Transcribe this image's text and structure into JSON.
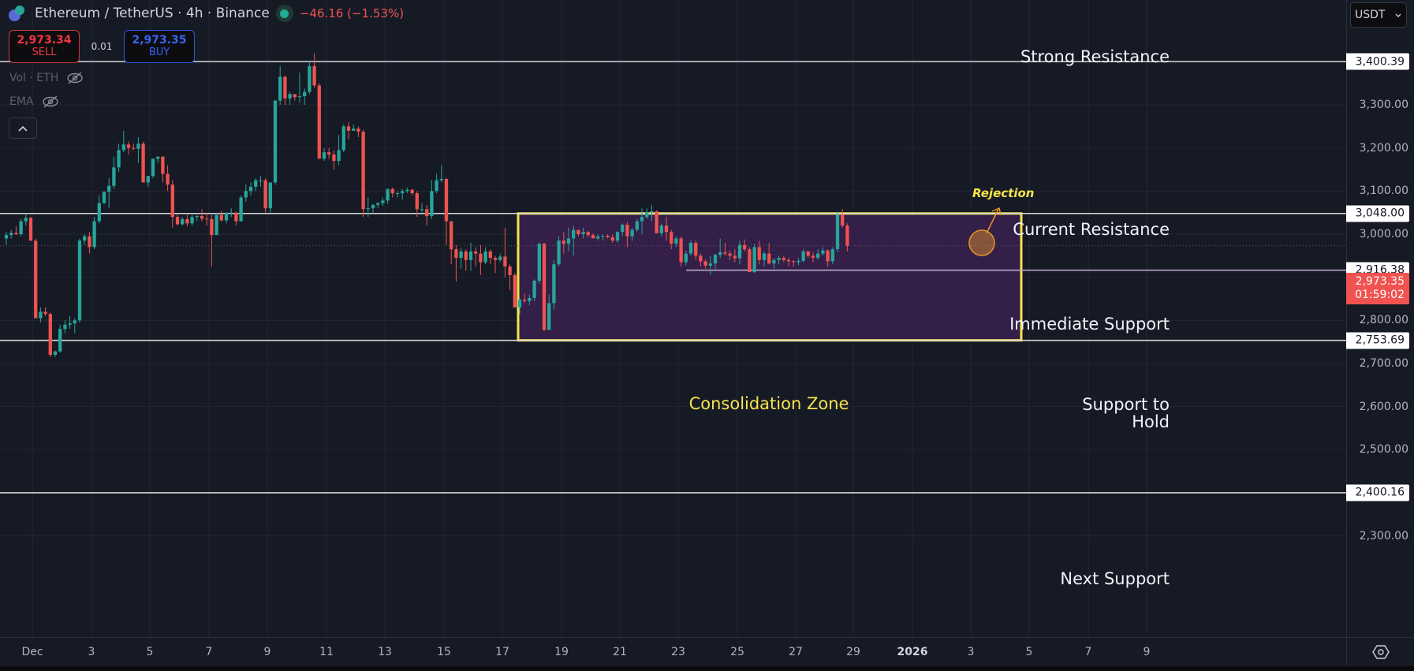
{
  "header": {
    "symbol_title": "Ethereum / TetherUS · 4h · Binance",
    "change": "−46.16 (−1.53%)",
    "sell_price": "2,973.34",
    "sell_label": "SELL",
    "spread": "0.01",
    "buy_price": "2,973.35",
    "buy_label": "BUY"
  },
  "indicators": [
    {
      "label": "Vol · ETH"
    },
    {
      "label": "EMA"
    }
  ],
  "currency_select": {
    "value": "USDT"
  },
  "colors": {
    "background": "#161a25",
    "up": "#26a69a",
    "down": "#ef5350",
    "grid": "#232632",
    "zone_fill": "#331f48",
    "zone_border": "#f7e34b",
    "level_line": "#d6d6d6"
  },
  "price_axis": {
    "ticks": [
      "3,300.00",
      "3,200.00",
      "3,100.00",
      "3,000.00",
      "2,800.00",
      "2,700.00",
      "2,600.00",
      "2,500.00",
      "2,300.00"
    ],
    "last_price": "2,973.35",
    "countdown": "01:59:02"
  },
  "time_axis": {
    "labels": [
      "Dec",
      "3",
      "5",
      "7",
      "9",
      "11",
      "13",
      "15",
      "17",
      "19",
      "21",
      "23",
      "25",
      "27",
      "29",
      "2026",
      "3",
      "5",
      "7",
      "9"
    ]
  },
  "levels": [
    {
      "name": "Strong Resistance",
      "price": "3,400.39"
    },
    {
      "name": "Current Resistance",
      "price": "3,048.00"
    },
    {
      "name": "Immediate Support",
      "price": "2,916.38"
    },
    {
      "name": "Support to Hold",
      "price": "2,753.69"
    },
    {
      "name": "Next Support",
      "price": "2,400.16"
    }
  ],
  "annotations": {
    "zone_label": "Consolidation Zone",
    "rejection_label": "Rejection"
  },
  "chart_data": {
    "type": "candlestick",
    "title": "Ethereum / TetherUS · 4h · Binance",
    "xlabel": "",
    "ylabel": "USDT",
    "ylim": [
      2250,
      3480
    ],
    "x_ticks": [
      "Dec",
      "3",
      "5",
      "7",
      "9",
      "11",
      "13",
      "15",
      "17",
      "19",
      "21",
      "23",
      "25",
      "27",
      "29",
      "2026",
      "3",
      "5",
      "7",
      "9"
    ],
    "y_ticks": [
      2300,
      2500,
      2600,
      2700,
      2800,
      3000,
      3100,
      3200,
      3300
    ],
    "horizontal_levels": [
      {
        "label": "Strong Resistance",
        "value": 3400.39
      },
      {
        "label": "Current Resistance",
        "value": 3048.0
      },
      {
        "label": "Immediate Support",
        "value": 2916.38
      },
      {
        "label": "Support to Hold",
        "value": 2753.69
      },
      {
        "label": "Next Support",
        "value": 2400.16
      }
    ],
    "rectangle": {
      "label": "Consolidation Zone",
      "start": "Dec 15 (late)",
      "end": "Dec 30",
      "top": 3048.0,
      "bottom": 2753.69
    },
    "last_price": 2973.35,
    "change": -46.16,
    "change_pct": -1.53,
    "candles_ohlc": [
      [
        2990,
        3005,
        2975,
        2998
      ],
      [
        2998,
        3010,
        2990,
        3003
      ],
      [
        3003,
        3018,
        2998,
        3000
      ],
      [
        3000,
        3035,
        2995,
        3030
      ],
      [
        3030,
        3048,
        3020,
        3038
      ],
      [
        3038,
        3040,
        2985,
        2985
      ],
      [
        2985,
        2990,
        2805,
        2805
      ],
      [
        2805,
        2830,
        2795,
        2820
      ],
      [
        2820,
        2830,
        2810,
        2815
      ],
      [
        2815,
        2818,
        2715,
        2720
      ],
      [
        2720,
        2730,
        2715,
        2728
      ],
      [
        2728,
        2790,
        2725,
        2780
      ],
      [
        2780,
        2800,
        2770,
        2790
      ],
      [
        2790,
        2810,
        2780,
        2793
      ],
      [
        2793,
        2805,
        2770,
        2800
      ],
      [
        2800,
        2990,
        2795,
        2985
      ],
      [
        2985,
        3000,
        2975,
        2995
      ],
      [
        2995,
        3005,
        2955,
        2970
      ],
      [
        2970,
        3040,
        2965,
        3030
      ],
      [
        3030,
        3090,
        3025,
        3072
      ],
      [
        3072,
        3100,
        3070,
        3098
      ],
      [
        3098,
        3130,
        3060,
        3112
      ],
      [
        3112,
        3180,
        3105,
        3155
      ],
      [
        3155,
        3210,
        3145,
        3195
      ],
      [
        3195,
        3240,
        3190,
        3208
      ],
      [
        3208,
        3215,
        3185,
        3200
      ],
      [
        3200,
        3210,
        3195,
        3198
      ],
      [
        3198,
        3225,
        3165,
        3210
      ],
      [
        3210,
        3215,
        3120,
        3120
      ],
      [
        3120,
        3135,
        3110,
        3135
      ],
      [
        3135,
        3175,
        3130,
        3175
      ],
      [
        3175,
        3180,
        3165,
        3180
      ],
      [
        3180,
        3180,
        3120,
        3140
      ],
      [
        3140,
        3160,
        3100,
        3115
      ],
      [
        3115,
        3125,
        3015,
        3040
      ],
      [
        3040,
        3045,
        3020,
        3023
      ],
      [
        3023,
        3040,
        3020,
        3035
      ],
      [
        3035,
        3045,
        3018,
        3025
      ],
      [
        3025,
        3045,
        3020,
        3040
      ],
      [
        3040,
        3045,
        3030,
        3042
      ],
      [
        3042,
        3058,
        3030,
        3036
      ],
      [
        3036,
        3048,
        3020,
        3035
      ],
      [
        3035,
        3045,
        2925,
        2998
      ],
      [
        2998,
        3050,
        3000,
        3045
      ],
      [
        3045,
        3055,
        3030,
        3032
      ],
      [
        3032,
        3050,
        3025,
        3050
      ],
      [
        3050,
        3060,
        3040,
        3050
      ],
      [
        3050,
        3052,
        3020,
        3030
      ],
      [
        3030,
        3090,
        3030,
        3085
      ],
      [
        3085,
        3115,
        3075,
        3100
      ],
      [
        3100,
        3120,
        3090,
        3110
      ],
      [
        3110,
        3130,
        3100,
        3125
      ],
      [
        3125,
        3135,
        3110,
        3125
      ],
      [
        3125,
        3130,
        3050,
        3060
      ],
      [
        3060,
        3120,
        3050,
        3120
      ],
      [
        3120,
        3310,
        3115,
        3310
      ],
      [
        3310,
        3390,
        3300,
        3365
      ],
      [
        3365,
        3368,
        3300,
        3315
      ],
      [
        3315,
        3330,
        3300,
        3325
      ],
      [
        3325,
        3325,
        3310,
        3318
      ],
      [
        3318,
        3375,
        3305,
        3320
      ],
      [
        3320,
        3338,
        3300,
        3330
      ],
      [
        3330,
        3398,
        3325,
        3390
      ],
      [
        3390,
        3420,
        3340,
        3345
      ],
      [
        3345,
        3350,
        3175,
        3175
      ],
      [
        3175,
        3200,
        3170,
        3190
      ],
      [
        3190,
        3200,
        3175,
        3185
      ],
      [
        3185,
        3195,
        3150,
        3170
      ],
      [
        3170,
        3230,
        3160,
        3195
      ],
      [
        3195,
        3255,
        3190,
        3250
      ],
      [
        3250,
        3260,
        3220,
        3240
      ],
      [
        3240,
        3255,
        3240,
        3245
      ],
      [
        3245,
        3250,
        3225,
        3238
      ],
      [
        3238,
        3242,
        3040,
        3058
      ],
      [
        3058,
        3085,
        3040,
        3060
      ],
      [
        3060,
        3070,
        3050,
        3068
      ],
      [
        3068,
        3075,
        3060,
        3072
      ],
      [
        3072,
        3085,
        3065,
        3078
      ],
      [
        3078,
        3105,
        3070,
        3105
      ],
      [
        3105,
        3108,
        3085,
        3095
      ],
      [
        3095,
        3100,
        3085,
        3095
      ],
      [
        3095,
        3105,
        3080,
        3100
      ],
      [
        3100,
        3108,
        3095,
        3103
      ],
      [
        3103,
        3105,
        3090,
        3095
      ],
      [
        3095,
        3100,
        3040,
        3058
      ],
      [
        3058,
        3072,
        3045,
        3058
      ],
      [
        3058,
        3068,
        3020,
        3042
      ],
      [
        3042,
        3125,
        3035,
        3100
      ],
      [
        3100,
        3140,
        3095,
        3125
      ],
      [
        3125,
        3160,
        3120,
        3128
      ],
      [
        3128,
        3130,
        2975,
        3030
      ],
      [
        3030,
        2990,
        2930,
        2965
      ],
      [
        2965,
        2975,
        2890,
        2945
      ],
      [
        2945,
        2968,
        2920,
        2960
      ],
      [
        2960,
        2965,
        2915,
        2940
      ],
      [
        2940,
        2980,
        2915,
        2960
      ],
      [
        2960,
        2970,
        2925,
        2955
      ],
      [
        2955,
        2975,
        2905,
        2935
      ],
      [
        2935,
        2970,
        2930,
        2960
      ],
      [
        2960,
        2965,
        2930,
        2945
      ],
      [
        2945,
        2950,
        2910,
        2940
      ],
      [
        2940,
        2955,
        2935,
        2948
      ],
      [
        2948,
        3015,
        2900,
        2925
      ],
      [
        2925,
        2930,
        2870,
        2905
      ],
      [
        2905,
        2910,
        2830,
        2830
      ],
      [
        2830,
        2850,
        2815,
        2848
      ],
      [
        2848,
        2862,
        2840,
        2845
      ],
      [
        2845,
        2860,
        2835,
        2852
      ],
      [
        2852,
        2895,
        2845,
        2892
      ],
      [
        2892,
        2980,
        2885,
        2978
      ],
      [
        2978,
        2980,
        2775,
        2778
      ],
      [
        2778,
        2860,
        2780,
        2840
      ],
      [
        2840,
        2940,
        2825,
        2930
      ],
      [
        2930,
        2995,
        2925,
        2985
      ],
      [
        2985,
        3005,
        2955,
        2978
      ],
      [
        2978,
        3015,
        2960,
        2990
      ],
      [
        2990,
        3020,
        2950,
        3010
      ],
      [
        3010,
        3010,
        2995,
        3000
      ],
      [
        3000,
        3015,
        2990,
        3005
      ],
      [
        3005,
        3008,
        2993,
        2998
      ],
      [
        2998,
        3002,
        2990,
        2990
      ],
      [
        2990,
        3000,
        2985,
        2995
      ],
      [
        2995,
        3000,
        2985,
        2996
      ],
      [
        2996,
        3000,
        2990,
        2993
      ],
      [
        2993,
        3000,
        2980,
        2985
      ],
      [
        2985,
        3008,
        2980,
        3005
      ],
      [
        3005,
        3025,
        2995,
        3022
      ],
      [
        3022,
        3028,
        2970,
        2995
      ],
      [
        2995,
        3015,
        2985,
        3010
      ],
      [
        3010,
        3035,
        3005,
        3030
      ],
      [
        3030,
        3060,
        3000,
        3040
      ],
      [
        3040,
        3060,
        3035,
        3050
      ],
      [
        3050,
        3068,
        3030,
        3053
      ],
      [
        3053,
        3055,
        3002,
        3002
      ],
      [
        3002,
        3025,
        2995,
        3020
      ],
      [
        3020,
        3040,
        2985,
        3005
      ],
      [
        3005,
        3010,
        2965,
        2978
      ],
      [
        2978,
        2995,
        2970,
        2990
      ],
      [
        2990,
        2995,
        2925,
        2935
      ],
      [
        2935,
        2962,
        2928,
        2955
      ],
      [
        2955,
        2985,
        2950,
        2980
      ],
      [
        2980,
        2985,
        2940,
        2950
      ],
      [
        2950,
        2955,
        2925,
        2937
      ],
      [
        2937,
        2942,
        2920,
        2927
      ],
      [
        2927,
        2950,
        2905,
        2932
      ],
      [
        2932,
        2955,
        2920,
        2952
      ],
      [
        2952,
        2990,
        2945,
        2958
      ],
      [
        2958,
        2980,
        2950,
        2955
      ],
      [
        2955,
        2962,
        2940,
        2950
      ],
      [
        2950,
        2965,
        2935,
        2944
      ],
      [
        2944,
        2985,
        2930,
        2975
      ],
      [
        2975,
        2988,
        2960,
        2965
      ],
      [
        2965,
        2970,
        2912,
        2912
      ],
      [
        2912,
        2978,
        2910,
        2970
      ],
      [
        2970,
        2985,
        2930,
        2940
      ],
      [
        2940,
        2960,
        2925,
        2955
      ],
      [
        2955,
        2980,
        2930,
        2932
      ],
      [
        2932,
        2945,
        2920,
        2940
      ],
      [
        2940,
        2950,
        2930,
        2945
      ],
      [
        2945,
        2950,
        2935,
        2940
      ],
      [
        2940,
        2945,
        2925,
        2937
      ],
      [
        2937,
        2940,
        2925,
        2935
      ],
      [
        2935,
        2945,
        2928,
        2938
      ],
      [
        2938,
        2965,
        2935,
        2960
      ],
      [
        2960,
        2962,
        2945,
        2950
      ],
      [
        2950,
        2958,
        2935,
        2945
      ],
      [
        2945,
        2965,
        2940,
        2955
      ],
      [
        2955,
        2970,
        2950,
        2962
      ],
      [
        2962,
        2965,
        2925,
        2937
      ],
      [
        2937,
        2970,
        2930,
        2965
      ],
      [
        2965,
        3052,
        2958,
        3045
      ],
      [
        3045,
        3058,
        3015,
        3020
      ],
      [
        3020,
        3025,
        2960,
        2973
      ]
    ]
  }
}
